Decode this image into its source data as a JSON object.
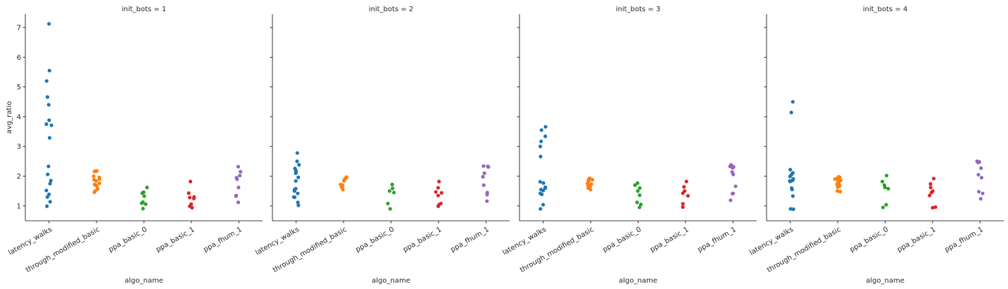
{
  "chart_data": {
    "type": "scatter",
    "kind": "strip",
    "categories": [
      "latency_walks",
      "through_modified_basic",
      "ppa_basic_0",
      "ppa_basic_1",
      "ppa_fhum_1"
    ],
    "colors": [
      "#1f77b4",
      "#ff7f0e",
      "#2ca02c",
      "#d62728",
      "#9467bd"
    ],
    "xlabel": "algo_name",
    "ylabel": "avg_ratio",
    "ylim": [
      0.5,
      7.45
    ],
    "yticks": [
      1,
      2,
      3,
      4,
      5,
      6,
      7
    ],
    "sharey": true,
    "facets": [
      {
        "title": "init_bots = 1",
        "series": [
          {
            "values": [
              7.12,
              5.55,
              5.2,
              4.66,
              4.4,
              3.88,
              3.75,
              3.71,
              3.29,
              2.33,
              2.06,
              1.85,
              1.75,
              1.52,
              1.39,
              1.3,
              1.14,
              0.99
            ]
          },
          {
            "values": [
              2.18,
              2.17,
              2.16,
              2.0,
              1.96,
              1.9,
              1.88,
              1.84,
              1.76,
              1.72,
              1.7,
              1.66,
              1.57,
              1.5,
              1.46
            ]
          },
          {
            "values": [
              1.62,
              1.46,
              1.43,
              1.33,
              1.13,
              1.09,
              1.06,
              0.91
            ]
          },
          {
            "values": [
              1.82,
              1.43,
              1.3,
              1.28,
              1.25,
              1.06,
              0.99,
              0.94
            ]
          },
          {
            "values": [
              2.32,
              2.15,
              2.02,
              1.95,
              1.9,
              1.62,
              1.35,
              1.33,
              1.12
            ]
          }
        ]
      },
      {
        "title": "init_bots = 2",
        "series": [
          {
            "values": [
              2.78,
              2.5,
              2.38,
              2.26,
              2.2,
              2.15,
              2.1,
              1.96,
              1.84,
              1.58,
              1.55,
              1.5,
              1.42,
              1.3,
              1.29,
              1.12,
              1.02
            ]
          },
          {
            "values": [
              1.97,
              1.95,
              1.94,
              1.92,
              1.88,
              1.84,
              1.72,
              1.7,
              1.66,
              1.63,
              1.55
            ]
          },
          {
            "values": [
              1.72,
              1.59,
              1.5,
              1.45,
              1.08,
              0.9
            ]
          },
          {
            "values": [
              1.82,
              1.61,
              1.47,
              1.44,
              1.35,
              1.08,
              1.04,
              0.99
            ]
          },
          {
            "values": [
              2.34,
              2.33,
              2.31,
              2.1,
              1.98,
              1.7,
              1.45,
              1.38,
              1.16
            ]
          }
        ]
      },
      {
        "title": "init_bots = 3",
        "series": [
          {
            "values": [
              3.66,
              3.55,
              3.34,
              3.17,
              3.0,
              2.66,
              1.81,
              1.77,
              1.63,
              1.6,
              1.55,
              1.52,
              1.42,
              1.39,
              1.04,
              0.9
            ]
          },
          {
            "values": [
              1.93,
              1.91,
              1.9,
              1.88,
              1.86,
              1.82,
              1.76,
              1.73,
              1.7,
              1.65,
              1.6,
              1.55
            ]
          },
          {
            "values": [
              1.77,
              1.7,
              1.6,
              1.5,
              1.36,
              1.12,
              1.05,
              0.95
            ]
          },
          {
            "values": [
              1.82,
              1.64,
              1.5,
              1.43,
              1.34,
              1.07,
              0.96
            ]
          },
          {
            "values": [
              2.38,
              2.35,
              2.33,
              2.31,
              2.28,
              2.14,
              2.06,
              1.66,
              1.42,
              1.41,
              1.19
            ]
          }
        ]
      },
      {
        "title": "init_bots = 4",
        "series": [
          {
            "values": [
              4.5,
              4.14,
              2.22,
              2.11,
              2.05,
              1.99,
              1.91,
              1.86,
              1.84,
              1.82,
              1.6,
              1.55,
              1.33,
              0.9,
              0.89
            ]
          },
          {
            "values": [
              1.98,
              1.96,
              1.93,
              1.9,
              1.86,
              1.82,
              1.77,
              1.73,
              1.7,
              1.67,
              1.63,
              1.5,
              1.48
            ]
          },
          {
            "values": [
              2.02,
              1.82,
              1.7,
              1.62,
              1.58,
              1.04,
              0.95
            ]
          },
          {
            "values": [
              1.92,
              1.74,
              1.62,
              1.5,
              1.45,
              1.35,
              0.96,
              0.94
            ]
          },
          {
            "values": [
              2.5,
              2.48,
              2.46,
              2.27,
              2.05,
              1.95,
              1.48,
              1.42,
              1.24
            ]
          }
        ]
      }
    ]
  }
}
